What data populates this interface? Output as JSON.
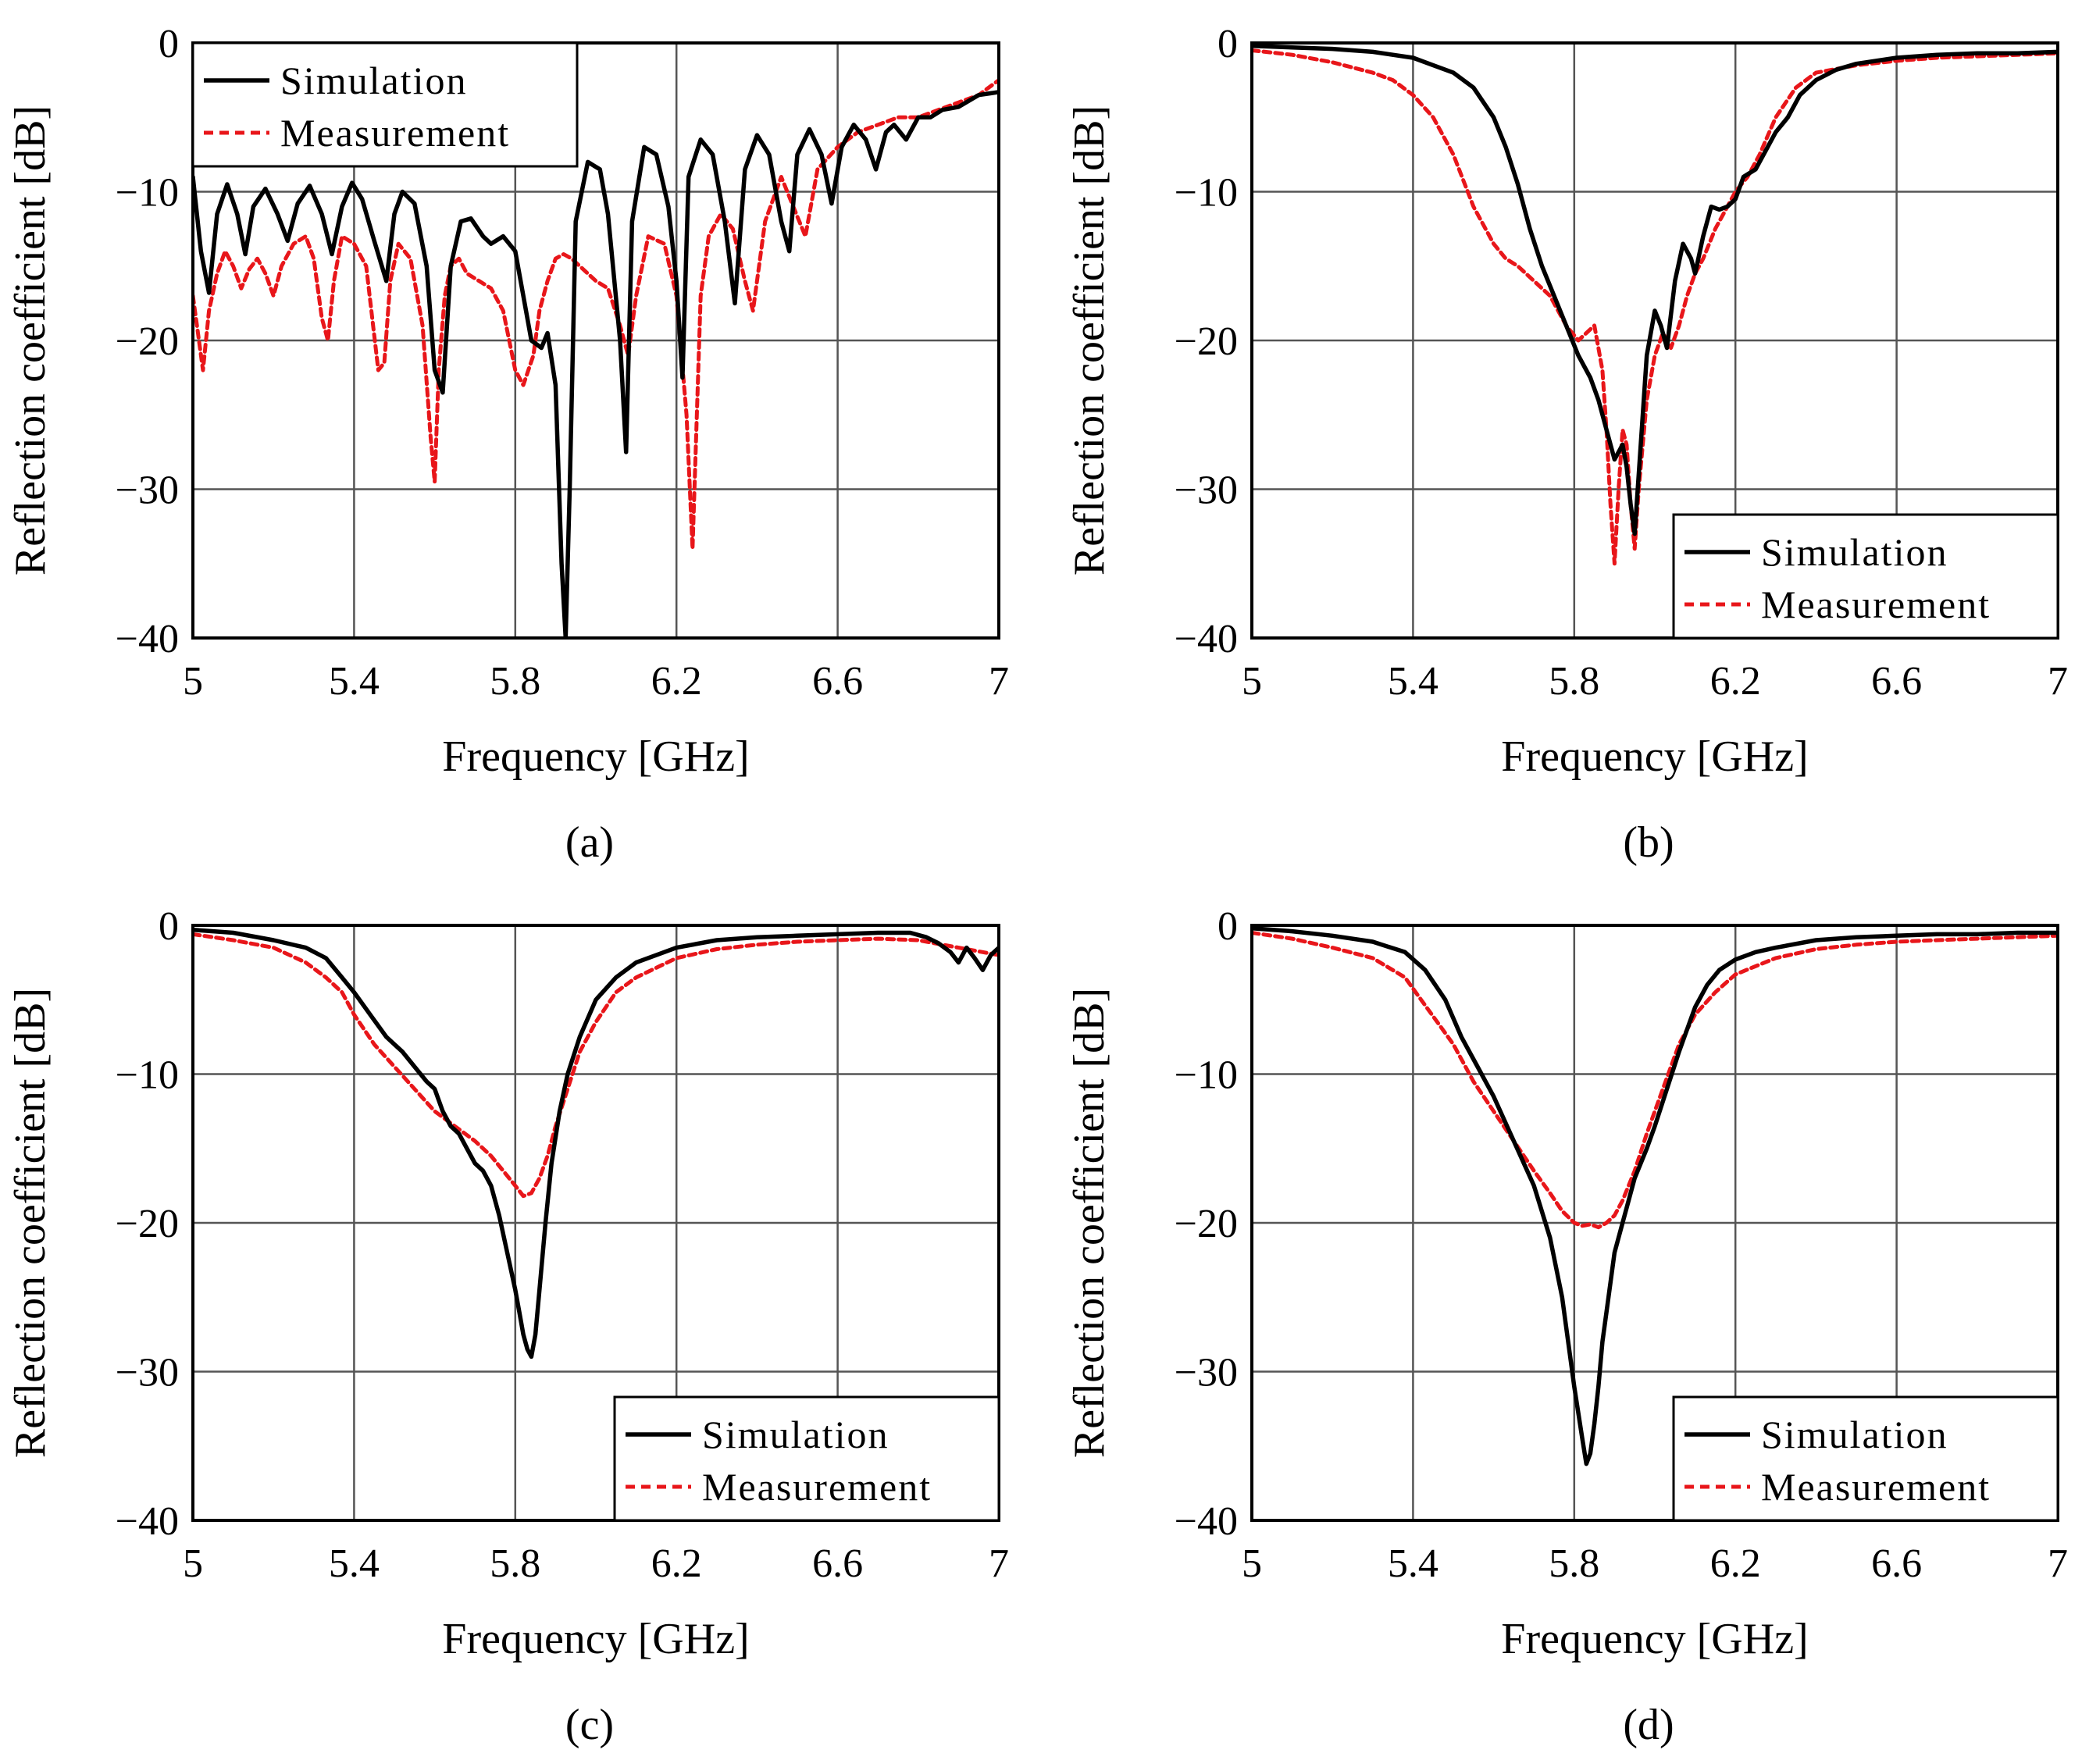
{
  "chart_data": [
    {
      "type": "line",
      "caption": "(a)",
      "xlabel": "Frequency [GHz]",
      "ylabel": "Reflection coefficient [dB]",
      "xlim": [
        5,
        7
      ],
      "ylim": [
        -40,
        0
      ],
      "xticks": [
        "5",
        "5.4",
        "5.8",
        "6.2",
        "6.6",
        "7"
      ],
      "yticks": [
        "0",
        "−10",
        "−20",
        "−30",
        "−40"
      ],
      "grid": true,
      "legend_position": "top-left",
      "series": [
        {
          "name": "Simulation",
          "color": "#000000",
          "style": "solid",
          "x": [
            5.0,
            5.02,
            5.04,
            5.06,
            5.085,
            5.11,
            5.13,
            5.15,
            5.18,
            5.21,
            5.235,
            5.26,
            5.29,
            5.32,
            5.345,
            5.37,
            5.395,
            5.42,
            5.45,
            5.48,
            5.5,
            5.52,
            5.55,
            5.58,
            5.6,
            5.62,
            5.64,
            5.665,
            5.69,
            5.72,
            5.74,
            5.77,
            5.8,
            5.82,
            5.84,
            5.865,
            5.88,
            5.9,
            5.915,
            5.925,
            5.935,
            5.95,
            5.98,
            6.01,
            6.03,
            6.06,
            6.075,
            6.09,
            6.12,
            6.15,
            6.18,
            6.2,
            6.215,
            6.23,
            6.26,
            6.29,
            6.32,
            6.345,
            6.37,
            6.4,
            6.43,
            6.46,
            6.48,
            6.5,
            6.53,
            6.56,
            6.585,
            6.61,
            6.64,
            6.67,
            6.695,
            6.72,
            6.74,
            6.77,
            6.8,
            6.83,
            6.86,
            6.9,
            6.95,
            7.0
          ],
          "values": [
            -9.0,
            -14.0,
            -16.8,
            -11.5,
            -9.5,
            -11.5,
            -14.2,
            -11.0,
            -9.8,
            -11.5,
            -13.3,
            -10.8,
            -9.6,
            -11.5,
            -14.2,
            -11.0,
            -9.4,
            -10.5,
            -13.3,
            -16.0,
            -11.5,
            -10.0,
            -10.8,
            -15.0,
            -22.0,
            -23.5,
            -15.0,
            -12.0,
            -11.8,
            -13.0,
            -13.5,
            -13.0,
            -14.0,
            -17.0,
            -20.0,
            -20.5,
            -19.5,
            -23.0,
            -35.0,
            -40.0,
            -30.0,
            -12.0,
            -8.0,
            -8.5,
            -11.5,
            -20.0,
            -27.5,
            -12.0,
            -7.0,
            -7.5,
            -11.0,
            -16.0,
            -22.5,
            -9.0,
            -6.5,
            -7.5,
            -12.0,
            -17.5,
            -8.5,
            -6.2,
            -7.5,
            -12.0,
            -14.0,
            -7.5,
            -5.8,
            -7.5,
            -10.8,
            -7.0,
            -5.5,
            -6.5,
            -8.5,
            -6.0,
            -5.5,
            -6.5,
            -5.0,
            -5.0,
            -4.5,
            -4.3,
            -3.5,
            -3.3
          ]
        },
        {
          "name": "Measurement",
          "color": "#e8161a",
          "style": "dashed",
          "x": [
            5.0,
            5.01,
            5.025,
            5.04,
            5.06,
            5.08,
            5.1,
            5.12,
            5.14,
            5.16,
            5.18,
            5.2,
            5.22,
            5.25,
            5.28,
            5.3,
            5.32,
            5.335,
            5.35,
            5.37,
            5.4,
            5.43,
            5.46,
            5.475,
            5.49,
            5.51,
            5.54,
            5.57,
            5.59,
            5.6,
            5.61,
            5.625,
            5.64,
            5.66,
            5.68,
            5.71,
            5.74,
            5.77,
            5.8,
            5.82,
            5.845,
            5.86,
            5.88,
            5.9,
            5.92,
            5.94,
            5.96,
            5.98,
            6.0,
            6.03,
            6.06,
            6.08,
            6.1,
            6.13,
            6.17,
            6.2,
            6.225,
            6.24,
            6.26,
            6.28,
            6.31,
            6.34,
            6.37,
            6.39,
            6.42,
            6.46,
            6.49,
            6.52,
            6.55,
            6.6,
            6.65,
            6.7,
            6.75,
            6.8,
            6.85,
            6.9,
            6.95,
            7.0
          ],
          "values": [
            -17.0,
            -19.0,
            -22.0,
            -18.0,
            -15.5,
            -14.0,
            -15.0,
            -16.5,
            -15.2,
            -14.5,
            -15.5,
            -17.0,
            -15.0,
            -13.5,
            -13.0,
            -14.5,
            -18.5,
            -20.0,
            -16.0,
            -13.0,
            -13.5,
            -15.0,
            -22.0,
            -21.5,
            -16.0,
            -13.5,
            -14.5,
            -19.0,
            -26.5,
            -29.5,
            -22.0,
            -17.0,
            -15.0,
            -14.5,
            -15.5,
            -16.0,
            -16.5,
            -18.0,
            -22.0,
            -23.0,
            -21.0,
            -18.0,
            -16.0,
            -14.5,
            -14.2,
            -14.5,
            -15.0,
            -15.5,
            -16.0,
            -16.5,
            -19.0,
            -21.0,
            -17.0,
            -13.0,
            -13.5,
            -17.0,
            -25.0,
            -34.0,
            -17.0,
            -13.0,
            -11.5,
            -12.5,
            -16.0,
            -18.0,
            -12.0,
            -9.0,
            -11.0,
            -13.0,
            -8.5,
            -7.0,
            -6.0,
            -5.5,
            -5.0,
            -5.0,
            -4.5,
            -4.0,
            -3.5,
            -2.5
          ]
        }
      ]
    },
    {
      "type": "line",
      "caption": "(b)",
      "xlabel": "Frequency [GHz]",
      "ylabel": "Reflection coefficient [dB]",
      "xlim": [
        5,
        7
      ],
      "ylim": [
        -40,
        0
      ],
      "xticks": [
        "5",
        "5.4",
        "5.8",
        "6.2",
        "6.6",
        "7"
      ],
      "yticks": [
        "0",
        "−10",
        "−20",
        "−30",
        "−40"
      ],
      "grid": true,
      "legend_position": "bottom-right",
      "series": [
        {
          "name": "Simulation",
          "color": "#000000",
          "style": "solid",
          "x": [
            5.0,
            5.1,
            5.2,
            5.3,
            5.4,
            5.45,
            5.5,
            5.55,
            5.6,
            5.63,
            5.66,
            5.69,
            5.72,
            5.75,
            5.78,
            5.81,
            5.84,
            5.86,
            5.88,
            5.9,
            5.91,
            5.92,
            5.93,
            5.94,
            5.95,
            5.96,
            5.98,
            6.0,
            6.015,
            6.03,
            6.05,
            6.07,
            6.09,
            6.1,
            6.12,
            6.14,
            6.16,
            6.18,
            6.2,
            6.22,
            6.25,
            6.28,
            6.3,
            6.33,
            6.36,
            6.4,
            6.45,
            6.5,
            6.6,
            6.7,
            6.8,
            6.9,
            7.0
          ],
          "values": [
            -0.2,
            -0.3,
            -0.4,
            -0.6,
            -1.0,
            -1.5,
            -2.0,
            -3.0,
            -5.0,
            -7.0,
            -9.5,
            -12.5,
            -15.0,
            -17.0,
            -19.0,
            -21.0,
            -22.5,
            -24.0,
            -26.0,
            -28.0,
            -27.5,
            -27.0,
            -28.5,
            -31.0,
            -33.0,
            -29.0,
            -21.0,
            -18.0,
            -19.0,
            -20.5,
            -16.0,
            -13.5,
            -14.5,
            -15.5,
            -13.0,
            -11.0,
            -11.2,
            -11.0,
            -10.5,
            -9.0,
            -8.5,
            -7.0,
            -6.0,
            -5.0,
            -3.5,
            -2.5,
            -1.8,
            -1.4,
            -1.0,
            -0.8,
            -0.7,
            -0.7,
            -0.6
          ]
        },
        {
          "name": "Measurement",
          "color": "#e8161a",
          "style": "dashed",
          "x": [
            5.0,
            5.1,
            5.2,
            5.3,
            5.35,
            5.4,
            5.45,
            5.5,
            5.55,
            5.6,
            5.63,
            5.66,
            5.7,
            5.74,
            5.78,
            5.81,
            5.83,
            5.85,
            5.87,
            5.88,
            5.89,
            5.9,
            5.91,
            5.92,
            5.93,
            5.94,
            5.95,
            5.96,
            5.98,
            6.0,
            6.02,
            6.04,
            6.06,
            6.08,
            6.1,
            6.12,
            6.15,
            6.18,
            6.2,
            6.23,
            6.26,
            6.3,
            6.35,
            6.4,
            6.5,
            6.6,
            6.7,
            6.8,
            6.9,
            7.0
          ],
          "values": [
            -0.5,
            -0.8,
            -1.3,
            -2.0,
            -2.5,
            -3.5,
            -5.0,
            -7.5,
            -11.0,
            -13.5,
            -14.5,
            -15.0,
            -16.0,
            -17.0,
            -19.0,
            -20.0,
            -19.5,
            -19.0,
            -22.0,
            -26.0,
            -31.0,
            -35.0,
            -30.0,
            -26.0,
            -27.0,
            -31.0,
            -34.0,
            -30.0,
            -24.0,
            -21.0,
            -19.5,
            -20.5,
            -19.0,
            -17.0,
            -15.5,
            -14.5,
            -12.5,
            -11.0,
            -10.0,
            -9.0,
            -7.5,
            -5.0,
            -3.0,
            -2.0,
            -1.5,
            -1.2,
            -1.0,
            -0.9,
            -0.8,
            -0.7
          ]
        }
      ]
    },
    {
      "type": "line",
      "caption": "(c)",
      "xlabel": "Frequency [GHz]",
      "ylabel": "Reflection coefficient [dB]",
      "xlim": [
        5,
        7
      ],
      "ylim": [
        -40,
        0
      ],
      "xticks": [
        "5",
        "5.4",
        "5.8",
        "6.2",
        "6.6",
        "7"
      ],
      "yticks": [
        "0",
        "−10",
        "−20",
        "−30",
        "−40"
      ],
      "grid": true,
      "legend_position": "bottom-right",
      "series": [
        {
          "name": "Simulation",
          "color": "#000000",
          "style": "solid",
          "x": [
            5.0,
            5.1,
            5.2,
            5.28,
            5.33,
            5.37,
            5.4,
            5.44,
            5.48,
            5.52,
            5.55,
            5.58,
            5.6,
            5.62,
            5.64,
            5.66,
            5.68,
            5.7,
            5.72,
            5.74,
            5.76,
            5.78,
            5.8,
            5.81,
            5.82,
            5.83,
            5.84,
            5.85,
            5.86,
            5.875,
            5.89,
            5.91,
            5.93,
            5.96,
            6.0,
            6.05,
            6.1,
            6.2,
            6.3,
            6.4,
            6.5,
            6.6,
            6.7,
            6.78,
            6.82,
            6.85,
            6.88,
            6.9,
            6.92,
            6.94,
            6.96,
            6.98,
            7.0
          ],
          "values": [
            -0.3,
            -0.5,
            -1.0,
            -1.5,
            -2.2,
            -3.5,
            -4.5,
            -6.0,
            -7.5,
            -8.5,
            -9.5,
            -10.5,
            -11.0,
            -12.5,
            -13.5,
            -14.0,
            -15.0,
            -16.0,
            -16.5,
            -17.5,
            -19.5,
            -22.0,
            -24.5,
            -26.0,
            -27.5,
            -28.5,
            -29.0,
            -27.5,
            -24.5,
            -20.0,
            -16.0,
            -12.5,
            -10.0,
            -7.5,
            -5.0,
            -3.5,
            -2.5,
            -1.5,
            -1.0,
            -0.8,
            -0.7,
            -0.6,
            -0.5,
            -0.5,
            -0.8,
            -1.2,
            -1.8,
            -2.5,
            -1.5,
            -2.2,
            -3.0,
            -2.0,
            -1.5
          ]
        },
        {
          "name": "Measurement",
          "color": "#e8161a",
          "style": "dashed",
          "x": [
            5.0,
            5.1,
            5.2,
            5.28,
            5.33,
            5.37,
            5.4,
            5.45,
            5.5,
            5.55,
            5.6,
            5.65,
            5.7,
            5.74,
            5.77,
            5.8,
            5.82,
            5.84,
            5.86,
            5.88,
            5.9,
            5.93,
            5.96,
            6.0,
            6.05,
            6.1,
            6.2,
            6.3,
            6.4,
            6.5,
            6.6,
            6.7,
            6.8,
            6.9,
            7.0
          ],
          "values": [
            -0.6,
            -1.0,
            -1.5,
            -2.5,
            -3.5,
            -4.5,
            -6.0,
            -8.0,
            -9.5,
            -11.0,
            -12.5,
            -13.5,
            -14.5,
            -15.5,
            -16.5,
            -17.5,
            -18.2,
            -18.0,
            -17.0,
            -15.5,
            -13.5,
            -11.0,
            -8.5,
            -6.5,
            -4.5,
            -3.5,
            -2.2,
            -1.6,
            -1.3,
            -1.1,
            -1.0,
            -0.9,
            -1.0,
            -1.5,
            -2.0
          ]
        }
      ]
    },
    {
      "type": "line",
      "caption": "(d)",
      "xlabel": "Frequency [GHz]",
      "ylabel": "Reflection coefficient [dB]",
      "xlim": [
        5,
        7
      ],
      "ylim": [
        -40,
        0
      ],
      "xticks": [
        "5",
        "5.4",
        "5.8",
        "6.2",
        "6.6",
        "7"
      ],
      "yticks": [
        "0",
        "−10",
        "−20",
        "−30",
        "−40"
      ],
      "grid": true,
      "legend_position": "bottom-right",
      "series": [
        {
          "name": "Simulation",
          "color": "#000000",
          "style": "solid",
          "x": [
            5.0,
            5.1,
            5.2,
            5.3,
            5.38,
            5.43,
            5.48,
            5.52,
            5.56,
            5.6,
            5.65,
            5.7,
            5.74,
            5.77,
            5.8,
            5.82,
            5.83,
            5.84,
            5.85,
            5.86,
            5.87,
            5.88,
            5.9,
            5.92,
            5.95,
            5.98,
            6.0,
            6.03,
            6.06,
            6.1,
            6.13,
            6.16,
            6.2,
            6.25,
            6.3,
            6.4,
            6.5,
            6.6,
            6.7,
            6.8,
            6.9,
            7.0
          ],
          "values": [
            -0.2,
            -0.4,
            -0.7,
            -1.1,
            -1.8,
            -3.0,
            -5.0,
            -7.5,
            -9.5,
            -11.5,
            -14.5,
            -17.5,
            -21.0,
            -25.0,
            -31.0,
            -34.5,
            -36.2,
            -35.5,
            -33.5,
            -31.0,
            -28.0,
            -26.0,
            -22.0,
            -20.0,
            -17.0,
            -15.0,
            -13.5,
            -11.0,
            -8.5,
            -5.5,
            -4.0,
            -3.0,
            -2.3,
            -1.8,
            -1.5,
            -1.0,
            -0.8,
            -0.7,
            -0.6,
            -0.6,
            -0.5,
            -0.5
          ]
        },
        {
          "name": "Measurement",
          "color": "#e8161a",
          "style": "dashed",
          "x": [
            5.0,
            5.1,
            5.2,
            5.3,
            5.38,
            5.42,
            5.46,
            5.5,
            5.55,
            5.6,
            5.65,
            5.7,
            5.74,
            5.77,
            5.8,
            5.82,
            5.84,
            5.86,
            5.88,
            5.9,
            5.92,
            5.95,
            5.98,
            6.02,
            6.06,
            6.1,
            6.15,
            6.2,
            6.3,
            6.4,
            6.5,
            6.6,
            6.7,
            6.8,
            6.9,
            7.0
          ],
          "values": [
            -0.5,
            -0.9,
            -1.5,
            -2.2,
            -3.5,
            -5.0,
            -6.5,
            -8.0,
            -10.5,
            -12.5,
            -14.5,
            -16.5,
            -18.0,
            -19.2,
            -20.0,
            -20.2,
            -20.1,
            -20.3,
            -20.0,
            -19.5,
            -18.5,
            -16.5,
            -14.0,
            -11.0,
            -8.0,
            -6.0,
            -4.5,
            -3.3,
            -2.2,
            -1.6,
            -1.3,
            -1.1,
            -1.0,
            -0.9,
            -0.8,
            -0.7
          ]
        }
      ]
    }
  ]
}
